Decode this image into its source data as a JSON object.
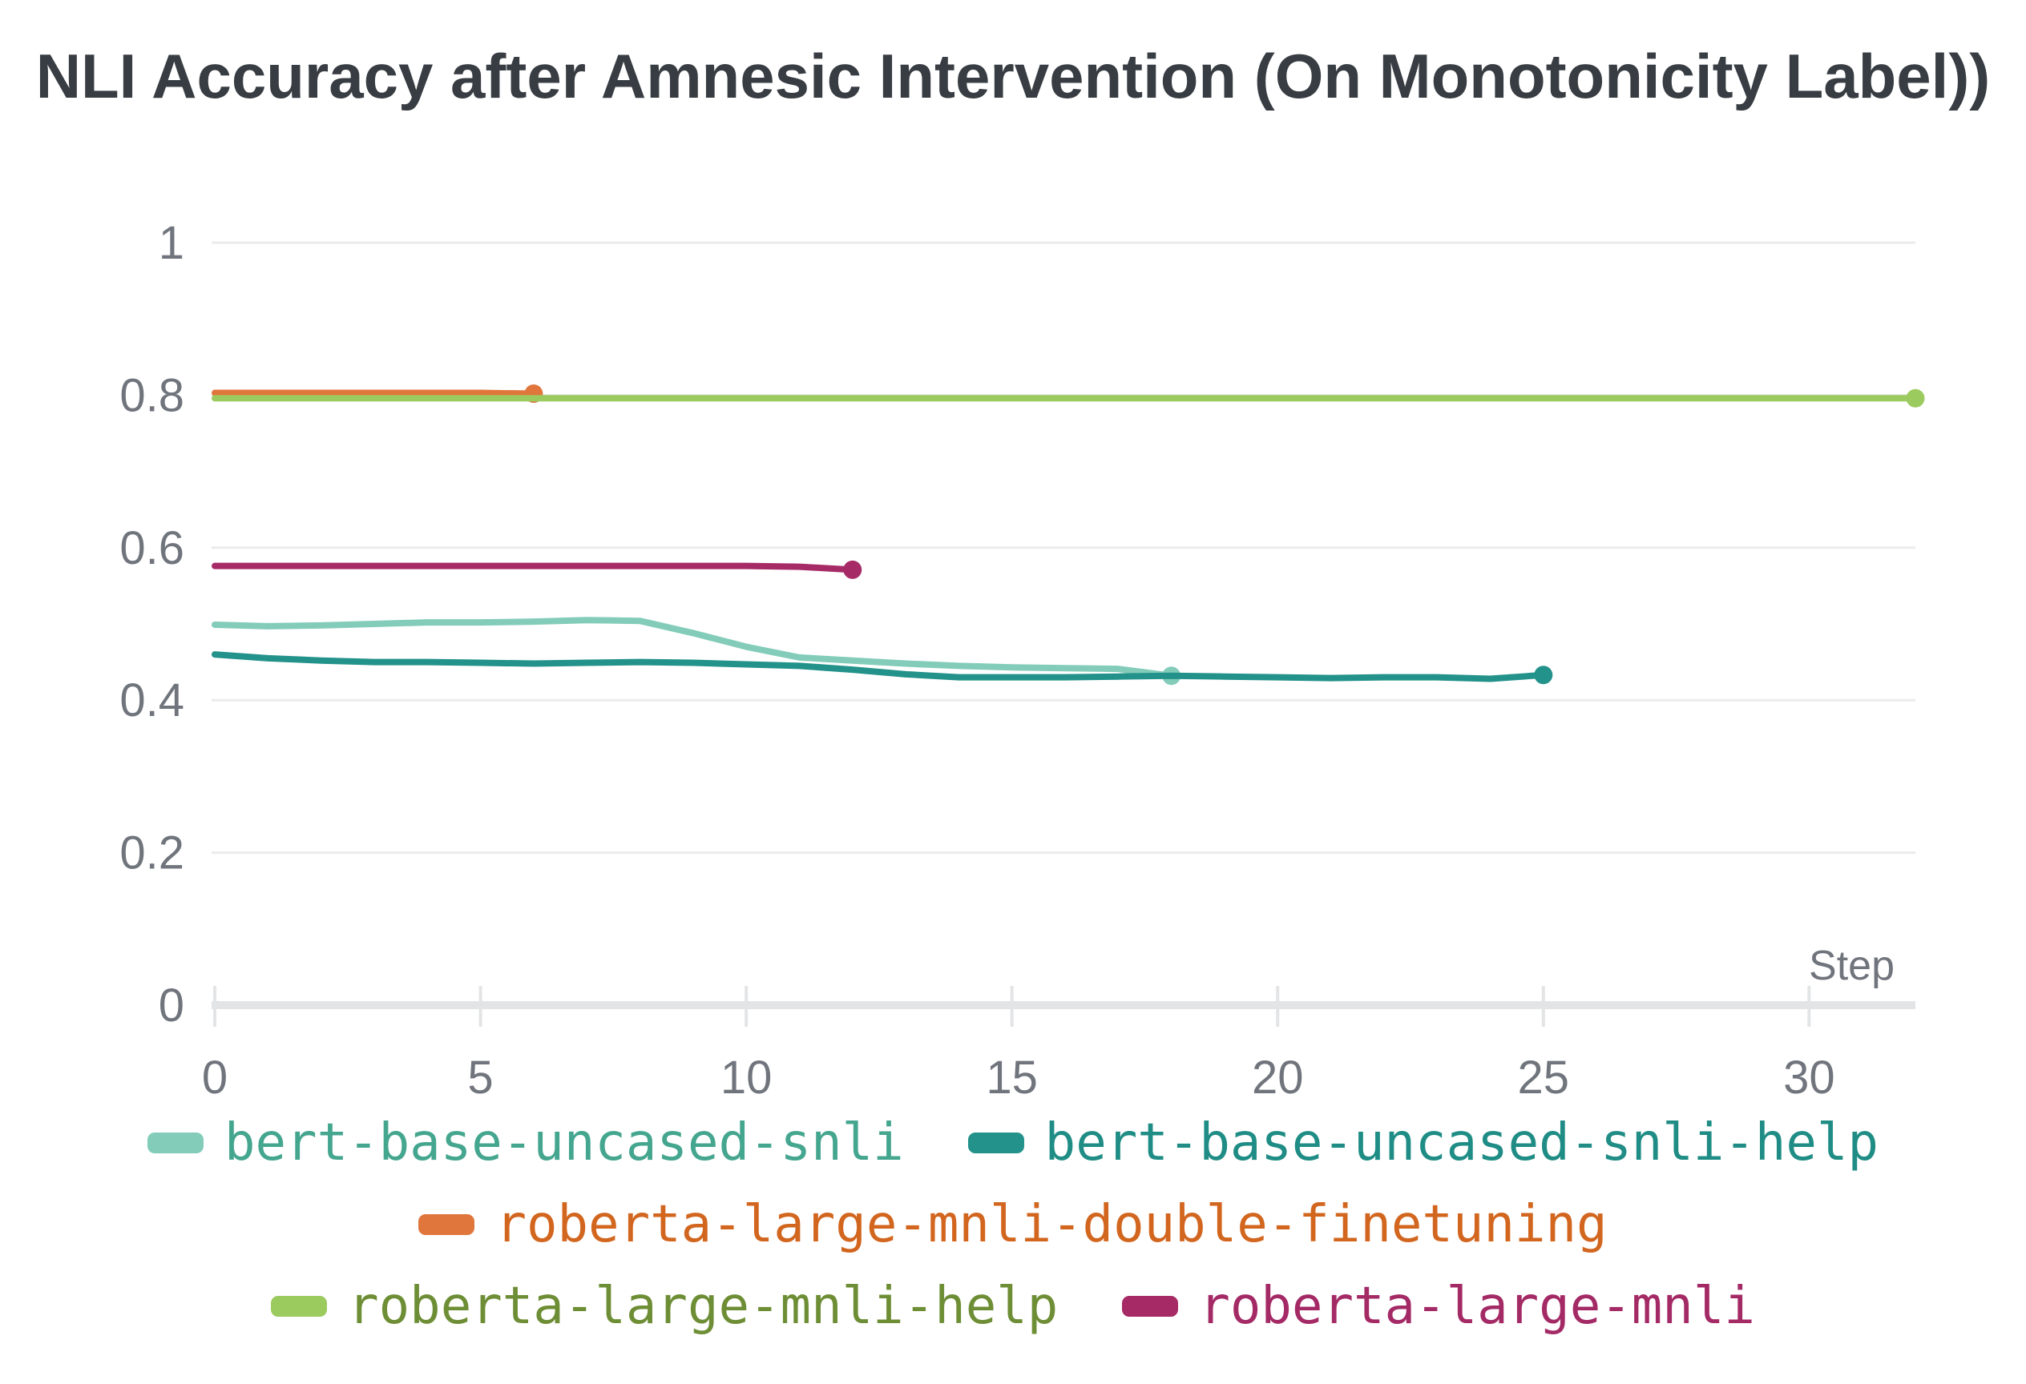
{
  "title": "NLI Accuracy after Amnesic Intervention (On Monotonicity Label))",
  "colors": {
    "title_text": "#383d43",
    "axis_text": "#70747c",
    "gridline": "#ebebed",
    "axis_line": "#e3e4e6",
    "background": "#ffffff"
  },
  "chart_data": {
    "type": "line",
    "title": "NLI Accuracy after Amnesic Intervention (On Monotonicity Label))",
    "xlabel": "Step",
    "ylabel": "",
    "xlim": [
      0,
      32
    ],
    "ylim": [
      0,
      1
    ],
    "x_ticks": [
      0,
      5,
      10,
      15,
      20,
      25,
      30
    ],
    "y_ticks": [
      0,
      0.2,
      0.4,
      0.6,
      0.8,
      1
    ],
    "y_tick_labels": [
      "0",
      "0.2",
      "0.4",
      "0.6",
      "0.8",
      "1"
    ],
    "grid": "horizontal",
    "legend_position": "bottom",
    "series": [
      {
        "name": "bert-base-uncased-snli",
        "color": "#83ccba",
        "label_color": "#45a68f",
        "x": [
          0,
          1,
          2,
          3,
          4,
          5,
          6,
          7,
          8,
          9,
          10,
          11,
          12,
          13,
          14,
          15,
          16,
          17,
          18
        ],
        "y": [
          0.499,
          0.497,
          0.498,
          0.5,
          0.502,
          0.502,
          0.503,
          0.505,
          0.504,
          0.488,
          0.47,
          0.456,
          0.452,
          0.448,
          0.445,
          0.443,
          0.442,
          0.441,
          0.432
        ]
      },
      {
        "name": "bert-base-uncased-snli-help",
        "color": "#23928a",
        "label_color": "#1f8d85",
        "x": [
          0,
          1,
          2,
          3,
          4,
          5,
          6,
          7,
          8,
          9,
          10,
          11,
          12,
          13,
          14,
          15,
          16,
          17,
          18,
          19,
          20,
          21,
          22,
          23,
          24,
          25
        ],
        "y": [
          0.46,
          0.455,
          0.452,
          0.45,
          0.45,
          0.449,
          0.448,
          0.449,
          0.45,
          0.449,
          0.447,
          0.445,
          0.44,
          0.434,
          0.43,
          0.43,
          0.43,
          0.431,
          0.432,
          0.431,
          0.43,
          0.429,
          0.43,
          0.43,
          0.428,
          0.433
        ]
      },
      {
        "name": "roberta-large-mnli-double-finetuning",
        "color": "#e0763b",
        "label_color": "#d2661f",
        "x": [
          0,
          1,
          2,
          3,
          4,
          5,
          6
        ],
        "y": [
          0.803,
          0.803,
          0.803,
          0.803,
          0.803,
          0.803,
          0.802
        ]
      },
      {
        "name": "roberta-large-mnli-help",
        "color": "#9bca5e",
        "label_color": "#6e8e36",
        "x": [
          0,
          2,
          4,
          6,
          8,
          10,
          12,
          14,
          16,
          18,
          20,
          22,
          24,
          26,
          28,
          30,
          32
        ],
        "y": [
          0.796,
          0.796,
          0.796,
          0.796,
          0.796,
          0.796,
          0.796,
          0.796,
          0.796,
          0.796,
          0.796,
          0.796,
          0.796,
          0.796,
          0.796,
          0.796,
          0.796
        ]
      },
      {
        "name": "roberta-large-mnli",
        "color": "#a62a66",
        "label_color": "#a42a66",
        "x": [
          0,
          1,
          2,
          3,
          4,
          5,
          6,
          7,
          8,
          9,
          10,
          11,
          12
        ],
        "y": [
          0.576,
          0.576,
          0.576,
          0.576,
          0.576,
          0.576,
          0.576,
          0.576,
          0.576,
          0.576,
          0.576,
          0.575,
          0.571
        ]
      }
    ],
    "legend_rows": [
      [
        0,
        1
      ],
      [
        2
      ],
      [
        3,
        4
      ]
    ]
  }
}
